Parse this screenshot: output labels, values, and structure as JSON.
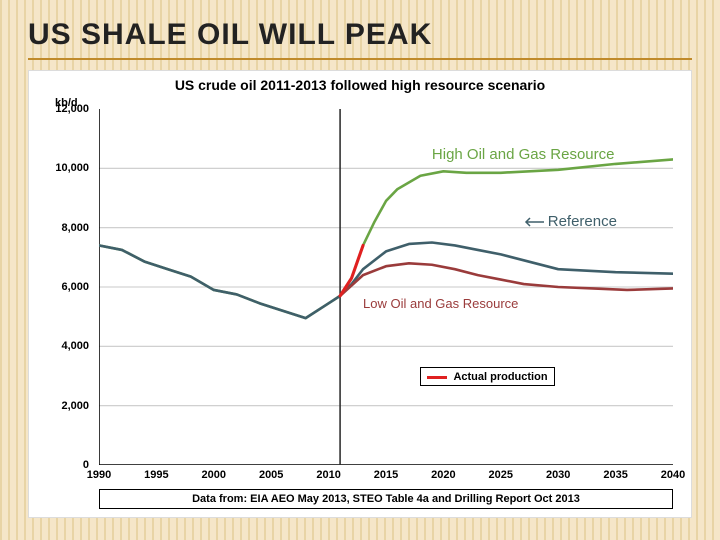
{
  "slide": {
    "title": "US SHALE OIL WILL PEAK",
    "title_color": "#222222",
    "underline_color": "#c08a2a",
    "background_base": "#f5e6c8",
    "background_stripe": "#e8d4a5"
  },
  "chart": {
    "type": "line",
    "title": "US crude oil 2011-2013 followed high resource scenario",
    "title_fontsize": 14,
    "y_unit_label": "kb/d",
    "background_color": "#ffffff",
    "grid_color": "#c9c9c9",
    "axis_color": "#000000",
    "x": {
      "lim": [
        1990,
        2040
      ],
      "tick_step": 5,
      "ticks": [
        "1990",
        "1995",
        "2000",
        "2005",
        "2010",
        "2015",
        "2020",
        "2025",
        "2030",
        "2035",
        "2040"
      ],
      "label_fontsize": 11
    },
    "y": {
      "lim": [
        0,
        12000
      ],
      "tick_step": 2000,
      "ticks": [
        "0",
        "2,000",
        "4,000",
        "6,000",
        "8,000",
        "10,000",
        "12,000"
      ],
      "label_fontsize": 11
    },
    "vertical_marker_x": 2011,
    "vertical_marker_color": "#2c2c2c",
    "series": {
      "high": {
        "label": "High Oil and Gas Resource",
        "label_color": "#6aa544",
        "label_fontsize": 15,
        "color": "#6aa544",
        "line_width": 2.5,
        "years": [
          1990,
          1992,
          1994,
          1996,
          1998,
          2000,
          2002,
          2004,
          2006,
          2008,
          2010,
          2011,
          2012,
          2013,
          2014,
          2015,
          2016,
          2018,
          2020,
          2022,
          2025,
          2030,
          2035,
          2040
        ],
        "values": [
          7400,
          7250,
          6850,
          6600,
          6350,
          5900,
          5750,
          5450,
          5200,
          4950,
          5450,
          5700,
          6300,
          7400,
          8200,
          8900,
          9300,
          9750,
          9900,
          9850,
          9850,
          9950,
          10150,
          10300
        ]
      },
      "reference": {
        "label": "Reference",
        "label_color": "#3f5f6a",
        "label_fontsize": 15,
        "color": "#3f5f6a",
        "line_width": 2.5,
        "label_has_arrow": true,
        "years": [
          1990,
          1992,
          1994,
          1996,
          1998,
          2000,
          2002,
          2004,
          2006,
          2008,
          2010,
          2011,
          2012,
          2013,
          2015,
          2017,
          2019,
          2021,
          2023,
          2025,
          2030,
          2035,
          2040
        ],
        "values": [
          7400,
          7250,
          6850,
          6600,
          6350,
          5900,
          5750,
          5450,
          5200,
          4950,
          5450,
          5700,
          6100,
          6600,
          7200,
          7450,
          7500,
          7400,
          7250,
          7100,
          6600,
          6500,
          6450
        ]
      },
      "low": {
        "label": "Low Oil and Gas Resource",
        "label_color": "#9a3b3b",
        "label_fontsize": 13,
        "color": "#9a3b3b",
        "line_width": 2.5,
        "years": [
          2011,
          2012,
          2013,
          2015,
          2017,
          2019,
          2021,
          2023,
          2025,
          2027,
          2030,
          2033,
          2036,
          2040
        ],
        "values": [
          5700,
          6050,
          6400,
          6700,
          6800,
          6750,
          6600,
          6400,
          6250,
          6100,
          6000,
          5950,
          5900,
          5950
        ]
      },
      "actual": {
        "label": "Actual production",
        "legend_label": "Actual production",
        "color": "#e02020",
        "line_width": 3,
        "years": [
          2011,
          2012,
          2013
        ],
        "values": [
          5700,
          6300,
          7400
        ]
      }
    },
    "legend": {
      "border_color": "#000000",
      "swatch_color": "#e02020",
      "text": "Actual production",
      "fontsize": 11
    },
    "source": {
      "text": "Data from: EIA AEO May 2013, STEO Table 4a and Drilling Report Oct 2013",
      "fontsize": 11
    }
  }
}
